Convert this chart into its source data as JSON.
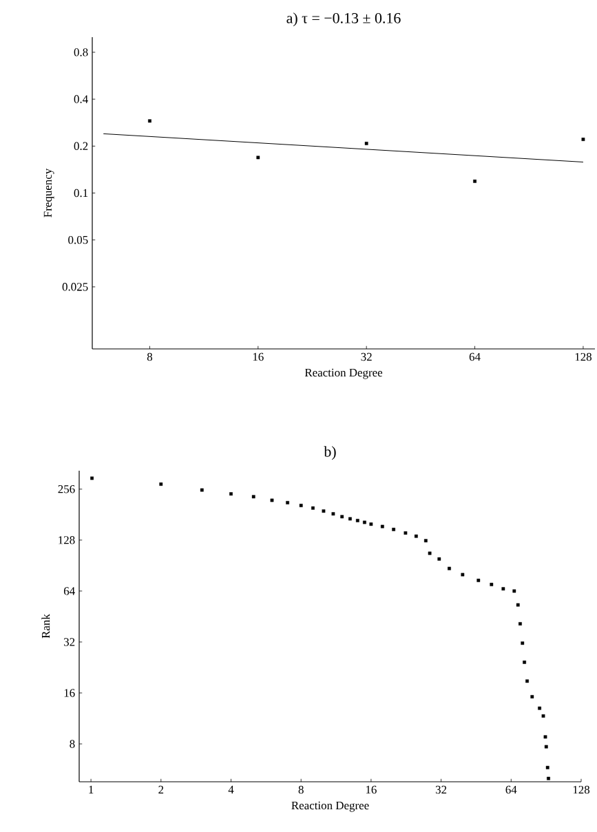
{
  "chart_data": [
    {
      "type": "scatter",
      "title": "a) τ = −0.13 ± 0.16",
      "xlabel": "Reaction Degree",
      "ylabel": "Frequency",
      "log": "xy",
      "xlim": [
        5.54,
        138
      ],
      "ylim": [
        0.01,
        1
      ],
      "xticks": [
        8,
        16,
        32,
        64,
        128
      ],
      "yticks": [
        0.025,
        0.05,
        0.1,
        0.2,
        0.4,
        0.8
      ],
      "series": [
        {
          "marker": "square",
          "color": "#000000",
          "x": [
            8,
            16,
            32,
            64,
            128
          ],
          "values": [
            0.29,
            0.169,
            0.208,
            0.119,
            0.221
          ]
        },
        {
          "type": "line",
          "color": "#000000",
          "x": [
            5.95,
            128
          ],
          "values": [
            0.24,
            0.158
          ]
        }
      ]
    },
    {
      "type": "scatter",
      "title": "b)",
      "xlabel": "Reaction Degree",
      "ylabel": "Rank",
      "log": "xy",
      "xlim": [
        0.89,
        128
      ],
      "ylim": [
        4.78,
        329
      ],
      "xticks": [
        1,
        2,
        4,
        8,
        16,
        32,
        64,
        128
      ],
      "yticks": [
        8,
        16,
        32,
        64,
        128,
        256
      ],
      "series": [
        {
          "marker": "square",
          "color": "#000000",
          "x": [
            1.01,
            2,
            3,
            4,
            5,
            6,
            7,
            8,
            9,
            10,
            11,
            12,
            13,
            14,
            15,
            16,
            17.9,
            20,
            22.5,
            25,
            27.5,
            28.6,
            31.4,
            34.7,
            39.6,
            46.3,
            52.7,
            59.2,
            66,
            68.5,
            70,
            71.6,
            73,
            75,
            78.8,
            84.8,
            88,
            89.8,
            90.6,
            91.8,
            92.6
          ],
          "values": [
            297,
            274,
            253,
            240,
            231,
            220,
            213,
            205,
            198,
            190,
            183,
            176,
            171,
            167,
            163,
            159,
            154,
            148,
            141,
            135,
            127,
            107,
            99,
            87,
            80,
            74,
            70,
            66,
            64,
            53,
            41,
            31.5,
            24.3,
            18.8,
            15.2,
            13,
            11.7,
            8.8,
            7.7,
            5.8,
            5
          ]
        }
      ]
    }
  ]
}
